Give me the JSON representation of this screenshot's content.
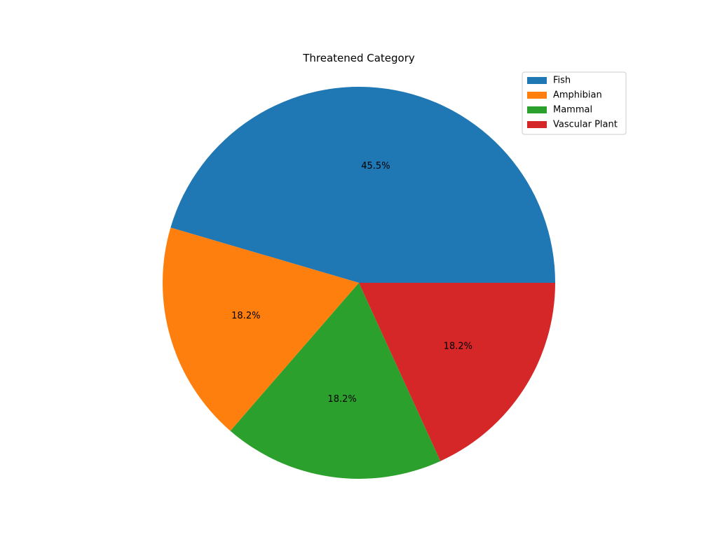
{
  "chart_data": {
    "type": "pie",
    "title": "Threatened Category",
    "start_angle_deg": 0,
    "direction": "counterclockwise",
    "legend_position": "top-right",
    "slices": [
      {
        "label": "Fish",
        "value": 45.5,
        "pct_label": "45.5%",
        "color": "#1f77b4"
      },
      {
        "label": "Amphibian",
        "value": 18.2,
        "pct_label": "18.2%",
        "color": "#ff7f0e"
      },
      {
        "label": "Mammal",
        "value": 18.2,
        "pct_label": "18.2%",
        "color": "#2ca02c"
      },
      {
        "label": "Vascular Plant",
        "value": 18.2,
        "pct_label": "18.2%",
        "color": "#d62728"
      }
    ]
  }
}
